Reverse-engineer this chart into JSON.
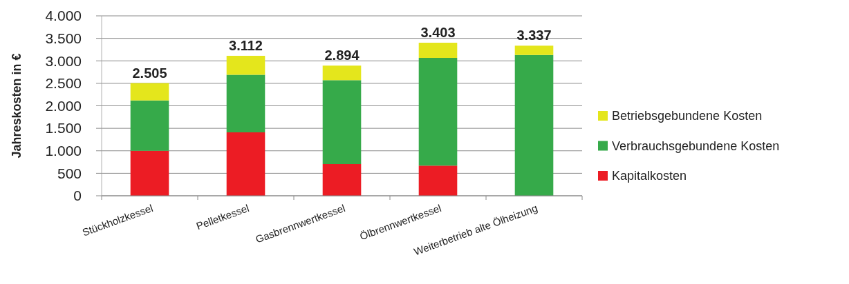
{
  "chart_data": {
    "type": "bar",
    "stacked": true,
    "categories": [
      "Stückholzkessel",
      "Pelletkessel",
      "Gasbrennwertkessel",
      "Ölbrennwertkessel",
      "Weiterbetrieb alte Ölheizung"
    ],
    "series": [
      {
        "name": "Kapitalkosten",
        "color": "#ec1c24",
        "values": [
          1000,
          1410,
          705,
          670,
          0
        ]
      },
      {
        "name": "Verbrauchsgebundene Kosten",
        "color": "#36aa4a",
        "values": [
          1120,
          1280,
          1865,
          2395,
          3130
        ]
      },
      {
        "name": "Betriebsgebundene Kosten",
        "color": "#e4e61c",
        "values": [
          385,
          422,
          324,
          338,
          207
        ]
      }
    ],
    "totals": [
      "2.505",
      "3.112",
      "2.894",
      "3.403",
      "3.337"
    ],
    "ylabel": "Jahreskosten in €",
    "ylim": [
      0,
      4000
    ],
    "yticks": [
      0,
      500,
      {
        "value": 1000,
        "label": "1.000"
      },
      {
        "value": 1500,
        "label": "1.500"
      },
      {
        "value": 2000,
        "label": "2.000"
      },
      {
        "value": 2500,
        "label": "2.500"
      },
      {
        "value": 3000,
        "label": "3.000"
      },
      {
        "value": 3500,
        "label": "3.500"
      },
      {
        "value": 4000,
        "label": "4.000"
      }
    ],
    "grid": "y",
    "legend": "right"
  }
}
